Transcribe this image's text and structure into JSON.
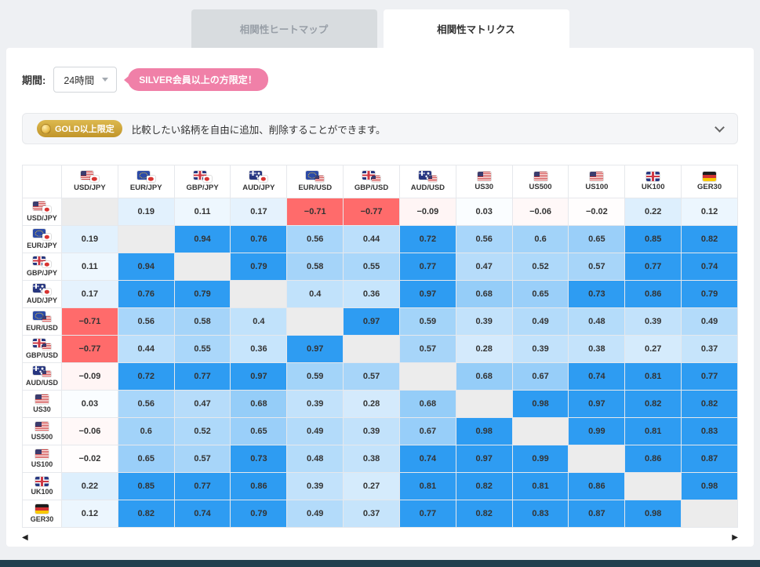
{
  "tabs": [
    {
      "label": "相関性ヒートマップ",
      "active": false
    },
    {
      "label": "相関性マトリクス",
      "active": true
    }
  ],
  "controls": {
    "period_label": "期間:",
    "period_value": "24時間",
    "silver_badge": "SILVER会員以上の方限定！"
  },
  "gold_banner": {
    "badge": "GOLD以上限定",
    "text": "比較したい銘柄を自由に追加、削除することができます。"
  },
  "scrollbar": {
    "left_arrow": "◀",
    "right_arrow": "▶"
  },
  "colors": {
    "positive": "#2e9cf2",
    "negative": "#ff6b6b",
    "diagonal": "#ececec",
    "pink_badge": "#f080a8",
    "gold": "#c99a28",
    "footer": "#21404f"
  },
  "chart_data": {
    "type": "heatmap",
    "title": "相関性マトリクス",
    "period": "24時間",
    "legend_position": "none",
    "symbols": [
      {
        "label": "USD/JPY",
        "flags": [
          "us",
          "jp"
        ]
      },
      {
        "label": "EUR/JPY",
        "flags": [
          "eu",
          "jp"
        ]
      },
      {
        "label": "GBP/JPY",
        "flags": [
          "gb",
          "jp"
        ]
      },
      {
        "label": "AUD/JPY",
        "flags": [
          "au",
          "jp"
        ]
      },
      {
        "label": "EUR/USD",
        "flags": [
          "eu",
          "us"
        ]
      },
      {
        "label": "GBP/USD",
        "flags": [
          "gb",
          "us"
        ]
      },
      {
        "label": "AUD/USD",
        "flags": [
          "au",
          "us"
        ]
      },
      {
        "label": "US30",
        "flags": [
          "us"
        ]
      },
      {
        "label": "US500",
        "flags": [
          "us"
        ]
      },
      {
        "label": "US100",
        "flags": [
          "us"
        ]
      },
      {
        "label": "UK100",
        "flags": [
          "gb"
        ]
      },
      {
        "label": "GER30",
        "flags": [
          "de"
        ]
      }
    ],
    "matrix": [
      [
        null,
        0.19,
        0.11,
        0.17,
        -0.71,
        -0.77,
        -0.09,
        0.03,
        -0.06,
        -0.02,
        0.22,
        0.12
      ],
      [
        0.19,
        null,
        0.94,
        0.76,
        0.56,
        0.44,
        0.72,
        0.56,
        0.6,
        0.65,
        0.85,
        0.82
      ],
      [
        0.11,
        0.94,
        null,
        0.79,
        0.58,
        0.55,
        0.77,
        0.47,
        0.52,
        0.57,
        0.77,
        0.74
      ],
      [
        0.17,
        0.76,
        0.79,
        null,
        0.4,
        0.36,
        0.97,
        0.68,
        0.65,
        0.73,
        0.86,
        0.79
      ],
      [
        -0.71,
        0.56,
        0.58,
        0.4,
        null,
        0.97,
        0.59,
        0.39,
        0.49,
        0.48,
        0.39,
        0.49
      ],
      [
        -0.77,
        0.44,
        0.55,
        0.36,
        0.97,
        null,
        0.57,
        0.28,
        0.39,
        0.38,
        0.27,
        0.37
      ],
      [
        -0.09,
        0.72,
        0.77,
        0.97,
        0.59,
        0.57,
        null,
        0.68,
        0.67,
        0.74,
        0.81,
        0.77
      ],
      [
        0.03,
        0.56,
        0.47,
        0.68,
        0.39,
        0.28,
        0.68,
        null,
        0.98,
        0.97,
        0.82,
        0.82
      ],
      [
        -0.06,
        0.6,
        0.52,
        0.65,
        0.49,
        0.39,
        0.67,
        0.98,
        null,
        0.99,
        0.81,
        0.83
      ],
      [
        -0.02,
        0.65,
        0.57,
        0.73,
        0.48,
        0.38,
        0.74,
        0.97,
        0.99,
        null,
        0.86,
        0.87
      ],
      [
        0.22,
        0.85,
        0.77,
        0.86,
        0.39,
        0.27,
        0.81,
        0.82,
        0.81,
        0.86,
        null,
        0.98
      ],
      [
        0.12,
        0.82,
        0.74,
        0.79,
        0.49,
        0.37,
        0.77,
        0.82,
        0.83,
        0.87,
        0.98,
        null
      ]
    ],
    "color_scale": {
      "zero": "#ffffff",
      "positive_max": "#2e9cf2",
      "negative_max": "#ff6b6b",
      "saturation_threshold": 0.7
    }
  }
}
